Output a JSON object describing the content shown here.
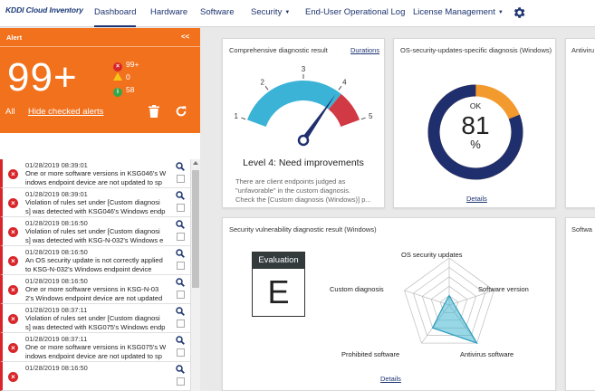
{
  "app": {
    "logo_text": "KDDI Cloud Inventory",
    "nav": [
      {
        "label": "Dashboard",
        "active": true,
        "caret": false
      },
      {
        "label": "Hardware",
        "active": false,
        "caret": false
      },
      {
        "label": "Software",
        "active": false,
        "caret": false
      },
      {
        "label": "Security",
        "active": false,
        "caret": true
      },
      {
        "label": "End-User Operational Log",
        "active": false,
        "caret": false
      },
      {
        "label": "License Management",
        "active": false,
        "caret": true
      }
    ],
    "settings_icon": "gear-icon"
  },
  "alert": {
    "title": "Alert",
    "collapse_label": "<<",
    "total": "99+",
    "counts": {
      "error": "99+",
      "warning": "0",
      "info": "58"
    },
    "filter_label": "All",
    "hide_link": "Hide checked alerts",
    "items": [
      {
        "time": "01/28/2019 08:39:01",
        "message": "One or more software versions in KSG046's W\nindows endpoint device are not updated to sp"
      },
      {
        "time": "01/28/2019 08:39:01",
        "message": "Violation of rules set under [Custom diagnosi\ns] was detected with KSG046's Windows endp"
      },
      {
        "time": "01/28/2019 08:16:50",
        "message": "Violation of rules set under [Custom diagnosi\ns] was detected with KSG-N-032's Windows e"
      },
      {
        "time": "01/28/2019 08:16:50",
        "message": "An OS security update is not correctly applied\nto KSG-N-032's Windows endpoint device"
      },
      {
        "time": "01/28/2019 08:16:50",
        "message": "One or more software versions in KSG-N-03\n2's Windows endpoint device are not updated"
      },
      {
        "time": "01/28/2019 08:37:11",
        "message": "Violation of rules set under [Custom diagnosi\ns] was detected with KSG075's Windows endp"
      },
      {
        "time": "01/28/2019 08:37:11",
        "message": "One or more software versions in KSG075's W\nindows endpoint device are not updated to sp"
      },
      {
        "time": "01/28/2019 08:16:50",
        "message": ""
      }
    ]
  },
  "cards": {
    "comprehensive": {
      "title": "Comprehensive diagnostic result",
      "link": "Durations",
      "gauge": {
        "value": 4,
        "min": 1,
        "max": 5,
        "ticks": [
          "1",
          "2",
          "3",
          "4",
          "5"
        ]
      },
      "level_text": "Level 4: Need improvements",
      "description": "There are client endpoints judged as\n\"unfavorable\" in the custom diagnosis.\nCheck the [Custom diagnosis (Windows)] p..."
    },
    "os_updates": {
      "title": "OS-security-updates-specific diagnosis (Windows)",
      "status": "OK",
      "percent": "81",
      "unit": "%",
      "ring_fraction": 0.81,
      "link": "Details",
      "colors": {
        "ok": "#1f2f6e",
        "ng": "#f29a2e"
      }
    },
    "antivirus_partial": {
      "title": "Antiviru"
    },
    "vulnerability": {
      "title": "Security vulnerability diagnostic result (Windows)",
      "evaluation_label": "Evaluation",
      "grade": "E",
      "link": "Details",
      "radar_axes": [
        "OS security updates",
        "Software version",
        "Antivirus software",
        "Prohibited software",
        "Custom diagnosis"
      ],
      "radar_values": [
        0.2,
        0.1,
        1.0,
        0.6,
        0.1
      ],
      "radar_color": "#43b6d0"
    },
    "software_partial": {
      "title": "Softwa"
    }
  }
}
